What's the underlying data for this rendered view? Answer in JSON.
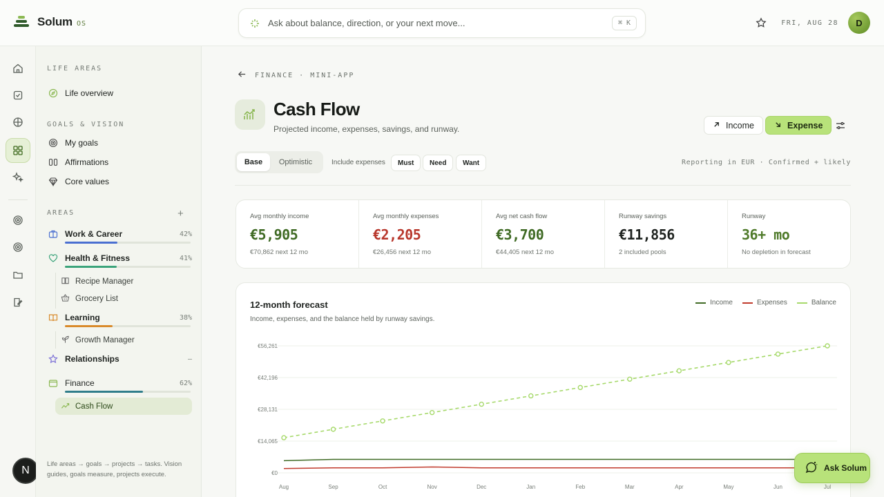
{
  "app": {
    "name": "Solum",
    "suffix": "OS"
  },
  "search": {
    "placeholder": "Ask about balance, direction, or your next move...",
    "shortcut": "⌘ K"
  },
  "header": {
    "date": "FRI, AUG 28",
    "avatar_initial": "D"
  },
  "rail": {
    "bottom_initial": "N"
  },
  "sidebar": {
    "life_areas_label": "LIFE AREAS",
    "life_overview": "Life overview",
    "goals_label": "GOALS & VISION",
    "goals": [
      "My goals",
      "Affirmations",
      "Core values"
    ],
    "areas_label": "AREAS",
    "areas": [
      {
        "name": "Work & Career",
        "pct": "42%",
        "progress": 0.42,
        "color": "#4a6fd1"
      },
      {
        "name": "Health & Fitness",
        "pct": "41%",
        "progress": 0.41,
        "color": "#3aa37a"
      },
      {
        "name": "Learning",
        "pct": "38%",
        "progress": 0.38,
        "color": "#d98a2b"
      },
      {
        "name": "Relationships",
        "pct": "–",
        "progress": 0,
        "color": "#7b6fd6"
      },
      {
        "name": "Finance",
        "pct": "62%",
        "progress": 0.62,
        "color": "#2f7d8a"
      }
    ],
    "sub_items": {
      "health": [
        "Recipe Manager",
        "Grocery List"
      ],
      "learning": [
        "Growth Manager"
      ],
      "finance": [
        "Cash Flow"
      ]
    },
    "footer": "Life areas → goals → projects → tasks. Vision guides, goals measure, projects execute."
  },
  "page": {
    "breadcrumb": "FINANCE · MINI-APP",
    "title": "Cash Flow",
    "subtitle": "Projected income, expenses, savings, and runway.",
    "income_button": "Income",
    "expense_button": "Expense"
  },
  "controls": {
    "scenario_base": "Base",
    "scenario_optimistic": "Optimistic",
    "include_label": "Include expenses",
    "chips": [
      "Must",
      "Need",
      "Want"
    ],
    "reporting": "Reporting in EUR · Confirmed + likely"
  },
  "stats": [
    {
      "label": "Avg monthly income",
      "value": "€5,905",
      "sub": "€70,862 next 12 mo",
      "color": "#3f6a24"
    },
    {
      "label": "Avg monthly expenses",
      "value": "€2,205",
      "sub": "€26,456 next 12 mo",
      "color": "#b8372c"
    },
    {
      "label": "Avg net cash flow",
      "value": "€3,700",
      "sub": "€44,405 next 12 mo",
      "color": "#3f6a24"
    },
    {
      "label": "Runway savings",
      "value": "€11,856",
      "sub": "2 included pools",
      "color": "#1f2320"
    },
    {
      "label": "Runway",
      "value": "36+ mo",
      "sub": "No depletion in forecast",
      "color": "#4f7a2a"
    }
  ],
  "chart_data": {
    "type": "line",
    "title": "12-month forecast",
    "subtitle": "Income, expenses, and the balance held by runway savings.",
    "categories": [
      "Aug",
      "Sep",
      "Oct",
      "Nov",
      "Dec",
      "Jan",
      "Feb",
      "Mar",
      "Apr",
      "May",
      "Jun",
      "Jul"
    ],
    "y_ticks": [
      "€0",
      "€14,065",
      "€28,131",
      "€42,196",
      "€56,261"
    ],
    "ylim": [
      0,
      56261
    ],
    "grid": true,
    "legend_position": "top-right",
    "series": [
      {
        "name": "Income",
        "color": "#3f6a24",
        "values": [
          5400,
          5950,
          5950,
          5950,
          5950,
          5950,
          5950,
          5950,
          5950,
          5950,
          5950,
          5950
        ]
      },
      {
        "name": "Expenses",
        "color": "#c0392b",
        "values": [
          1900,
          2200,
          2200,
          2600,
          2200,
          2200,
          2200,
          2200,
          2200,
          2200,
          2200,
          2200
        ]
      },
      {
        "name": "Balance",
        "color": "#a6d96a",
        "values": [
          15560,
          19300,
          23000,
          26700,
          30400,
          34100,
          37800,
          41500,
          45200,
          48900,
          52600,
          56261
        ]
      }
    ]
  },
  "ask": {
    "label": "Ask Solum"
  }
}
